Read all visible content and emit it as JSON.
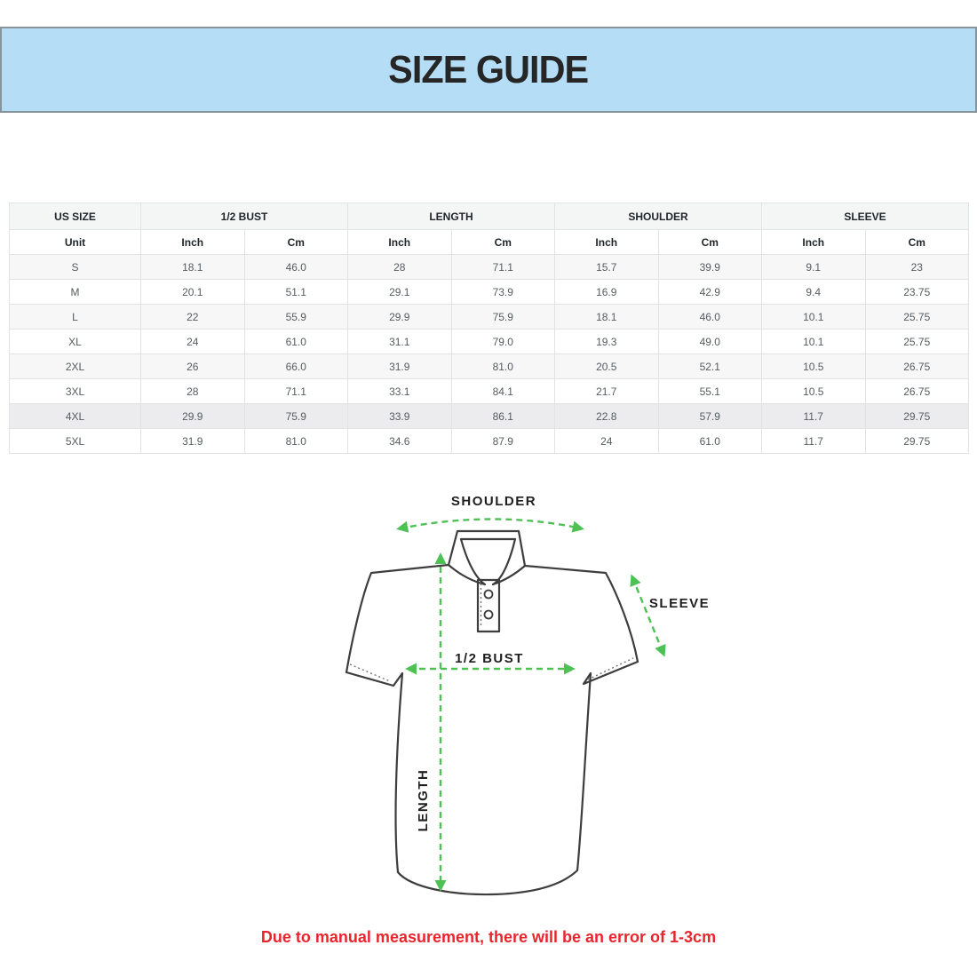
{
  "header": {
    "title": "SIZE GUIDE"
  },
  "table": {
    "columns": [
      "US SIZE",
      "1/2 BUST",
      "LENGTH",
      "SHOULDER",
      "SLEEVE"
    ],
    "unit_row": [
      "Unit",
      "Inch",
      "Cm",
      "Inch",
      "Cm",
      "Inch",
      "Cm",
      "Inch",
      "Cm"
    ],
    "rows": [
      [
        "S",
        "18.1",
        "46.0",
        "28",
        "71.1",
        "15.7",
        "39.9",
        "9.1",
        "23"
      ],
      [
        "M",
        "20.1",
        "51.1",
        "29.1",
        "73.9",
        "16.9",
        "42.9",
        "9.4",
        "23.75"
      ],
      [
        "L",
        "22",
        "55.9",
        "29.9",
        "75.9",
        "18.1",
        "46.0",
        "10.1",
        "25.75"
      ],
      [
        "XL",
        "24",
        "61.0",
        "31.1",
        "79.0",
        "19.3",
        "49.0",
        "10.1",
        "25.75"
      ],
      [
        "2XL",
        "26",
        "66.0",
        "31.9",
        "81.0",
        "20.5",
        "52.1",
        "10.5",
        "26.75"
      ],
      [
        "3XL",
        "28",
        "71.1",
        "33.1",
        "84.1",
        "21.7",
        "55.1",
        "10.5",
        "26.75"
      ],
      [
        "4XL",
        "29.9",
        "75.9",
        "33.9",
        "86.1",
        "22.8",
        "57.9",
        "11.7",
        "29.75"
      ],
      [
        "5XL",
        "31.9",
        "81.0",
        "34.6",
        "87.9",
        "24",
        "61.0",
        "11.7",
        "29.75"
      ]
    ]
  },
  "diagram": {
    "labels": {
      "shoulder": "SHOULDER",
      "sleeve": "SLEEVE",
      "bust": "1/2 BUST",
      "length": "LENGTH"
    },
    "colors": {
      "arrow_green": "#4EC155",
      "shirt_outline": "#3d3d3d"
    }
  },
  "note": {
    "text": "Due to manual measurement, there will be an error of 1-3cm",
    "color": "#e8252c"
  },
  "colors": {
    "banner_bg": "#b5def6",
    "banner_border": "#87949c"
  }
}
